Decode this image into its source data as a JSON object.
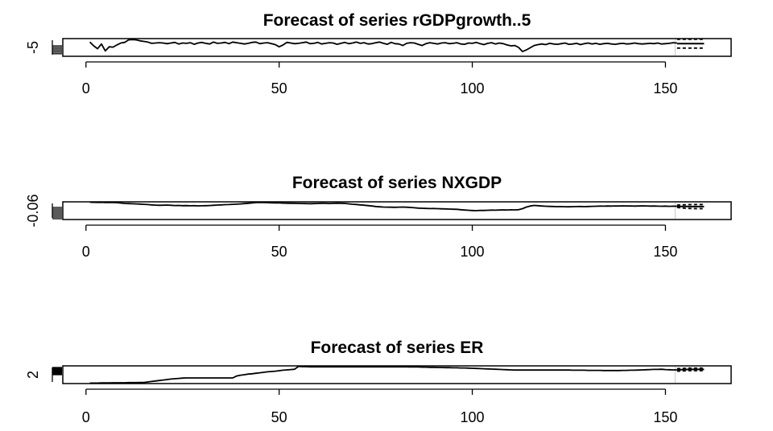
{
  "chart_data": [
    {
      "type": "line",
      "title": "Forecast of series rGDPgrowth..5",
      "xlim": [
        -6,
        167
      ],
      "xticks": [
        0,
        50,
        100,
        150
      ],
      "ylim": [
        -6.8,
        -1.2
      ],
      "yticks": [
        -6,
        -5.5,
        -5,
        -4.5,
        -4,
        -3.5
      ],
      "ytick_labels": [
        "-5"
      ],
      "series": [
        {
          "values": [
            -2.3,
            -3.5,
            -4.4,
            -2.9,
            -5.1,
            -3.8,
            -3.9,
            -3.2,
            -2.6,
            -2.4,
            -1.6,
            -1.5,
            -1.6,
            -1.9,
            -2.1,
            -2.3,
            -2.7,
            -2.6,
            -2.5,
            -2.6,
            -2.8,
            -2.6,
            -2.4,
            -2.9,
            -2.6,
            -2.7,
            -2.5,
            -3.0,
            -2.6,
            -2.4,
            -2.7,
            -2.9,
            -2.3,
            -2.7,
            -2.6,
            -2.4,
            -2.8,
            -2.3,
            -2.5,
            -2.7,
            -2.9,
            -2.7,
            -2.4,
            -2.3,
            -2.8,
            -2.6,
            -2.5,
            -2.8,
            -3.1,
            -3.8,
            -3.2,
            -2.4,
            -2.6,
            -2.8,
            -2.7,
            -2.5,
            -2.3,
            -2.8,
            -2.7,
            -2.4,
            -2.9,
            -2.7,
            -2.5,
            -2.6,
            -3.0,
            -2.7,
            -2.4,
            -2.8,
            -2.6,
            -2.3,
            -2.7,
            -2.5,
            -2.9,
            -2.8,
            -2.5,
            -2.3,
            -2.7,
            -3.0,
            -2.4,
            -2.8,
            -2.9,
            -3.4,
            -2.7,
            -2.5,
            -2.6,
            -3.0,
            -3.4,
            -2.8,
            -2.5,
            -2.7,
            -2.9,
            -2.6,
            -2.5,
            -2.8,
            -2.7,
            -2.5,
            -2.9,
            -3.0,
            -2.6,
            -2.7,
            -2.4,
            -2.8,
            -3.1,
            -2.7,
            -2.5,
            -2.9,
            -2.6,
            -2.8,
            -3.2,
            -3.5,
            -3.4,
            -4.0,
            -5.3,
            -4.8,
            -4.1,
            -3.4,
            -3.1,
            -2.9,
            -3.1,
            -2.7,
            -2.9,
            -3.0,
            -2.8,
            -2.6,
            -3.0,
            -2.9,
            -2.7,
            -3.1,
            -2.8,
            -2.6,
            -2.9,
            -2.7,
            -3.0,
            -2.8,
            -2.7,
            -2.9,
            -3.0,
            -2.8,
            -2.7,
            -2.9,
            -2.8,
            -2.6,
            -2.8,
            -2.9,
            -2.8,
            -2.7,
            -2.8,
            -2.6,
            -2.9,
            -2.8,
            -2.7,
            -2.5,
            -2.6
          ]
        },
        {
          "name": "forecast",
          "x": [
            153,
            154,
            155,
            156,
            157,
            158,
            159,
            160
          ],
          "values": [
            -2.8,
            -2.8,
            -2.8,
            -2.8,
            -2.8,
            -2.8,
            -2.8,
            -2.8
          ]
        },
        {
          "name": "lower",
          "x": [
            153,
            154,
            155,
            156,
            157,
            158,
            159,
            160
          ],
          "values": [
            -4.2,
            -4.2,
            -4.2,
            -4.2,
            -4.2,
            -4.2,
            -4.2,
            -4.2
          ]
        },
        {
          "name": "upper",
          "x": [
            153,
            154,
            155,
            156,
            157,
            158,
            159,
            160
          ],
          "values": [
            -1.4,
            -1.4,
            -1.4,
            -1.4,
            -1.4,
            -1.4,
            -1.4,
            -1.4
          ]
        }
      ],
      "colors": {
        "history": "#000000",
        "forecast": "#3355ee",
        "interval": "#ee3344"
      },
      "xlabel": "",
      "ylabel": "",
      "grid": false,
      "legend": "none"
    },
    {
      "type": "line",
      "title": "Forecast of series NXGDP",
      "xlim": [
        -6,
        167
      ],
      "xticks": [
        0,
        50,
        100,
        150
      ],
      "ylim": [
        -0.071,
        -0.049
      ],
      "yticks": [
        -0.07,
        -0.068,
        -0.066,
        -0.064,
        -0.062,
        -0.06,
        -0.058,
        -0.056
      ],
      "ytick_labels": [
        "-0.06"
      ],
      "series": [
        {
          "values": [
            -0.0495,
            -0.0496,
            -0.0497,
            -0.0496,
            -0.0498,
            -0.0497,
            -0.0499,
            -0.05,
            -0.0505,
            -0.051,
            -0.0512,
            -0.0514,
            -0.0516,
            -0.0518,
            -0.0521,
            -0.0524,
            -0.0528,
            -0.0531,
            -0.0533,
            -0.0532,
            -0.053,
            -0.0533,
            -0.0536,
            -0.0535,
            -0.0538,
            -0.0537,
            -0.0539,
            -0.0538,
            -0.054,
            -0.0539,
            -0.0538,
            -0.0536,
            -0.0533,
            -0.053,
            -0.0528,
            -0.0525,
            -0.0524,
            -0.0521,
            -0.0519,
            -0.0516,
            -0.0512,
            -0.0508,
            -0.0503,
            -0.0499,
            -0.0497,
            -0.0498,
            -0.05,
            -0.0502,
            -0.0503,
            -0.0504,
            -0.0506,
            -0.0507,
            -0.0508,
            -0.0509,
            -0.051,
            -0.0511,
            -0.0512,
            -0.0513,
            -0.0512,
            -0.051,
            -0.0508,
            -0.0509,
            -0.0511,
            -0.0509,
            -0.0507,
            -0.0508,
            -0.051,
            -0.0515,
            -0.052,
            -0.0523,
            -0.0528,
            -0.0532,
            -0.0537,
            -0.0542,
            -0.0548,
            -0.0552,
            -0.0555,
            -0.0556,
            -0.0557,
            -0.0558,
            -0.0556,
            -0.0555,
            -0.0557,
            -0.056,
            -0.0564,
            -0.0568,
            -0.057,
            -0.0572,
            -0.0574,
            -0.0573,
            -0.0575,
            -0.0577,
            -0.0578,
            -0.058,
            -0.0582,
            -0.0583,
            -0.0588,
            -0.0592,
            -0.0595,
            -0.0598,
            -0.06,
            -0.0596,
            -0.0597,
            -0.0595,
            -0.0593,
            -0.0594,
            -0.0592,
            -0.059,
            -0.0591,
            -0.0589,
            -0.059,
            -0.0588,
            -0.0575,
            -0.0555,
            -0.0542,
            -0.0535,
            -0.0538,
            -0.0542,
            -0.0545,
            -0.0547,
            -0.0548,
            -0.055,
            -0.0549,
            -0.0551,
            -0.0552,
            -0.055,
            -0.0549,
            -0.0548,
            -0.055,
            -0.0548,
            -0.0546,
            -0.0545,
            -0.0543,
            -0.0544,
            -0.0542,
            -0.0543,
            -0.0541,
            -0.0542,
            -0.054,
            -0.0542,
            -0.0541,
            -0.0543,
            -0.0542,
            -0.054,
            -0.0541,
            -0.0543,
            -0.0542,
            -0.0544,
            -0.0545,
            -0.0543,
            -0.0546,
            -0.0544,
            -0.0545
          ]
        },
        {
          "name": "forecast",
          "x": [
            153,
            154,
            155,
            156,
            157,
            158,
            159,
            160
          ],
          "values": [
            -0.0545,
            -0.0547,
            -0.0548,
            -0.0548,
            -0.0549,
            -0.0549,
            -0.0549,
            -0.0549
          ]
        },
        {
          "name": "lower",
          "x": [
            153,
            154,
            155,
            156,
            157,
            158,
            159,
            160
          ],
          "values": [
            -0.056,
            -0.0566,
            -0.057,
            -0.0572,
            -0.0574,
            -0.0575,
            -0.0575,
            -0.0575
          ]
        },
        {
          "name": "upper",
          "x": [
            153,
            154,
            155,
            156,
            157,
            158,
            159,
            160
          ],
          "values": [
            -0.053,
            -0.0528,
            -0.0526,
            -0.0524,
            -0.0524,
            -0.0523,
            -0.0523,
            -0.0523
          ]
        }
      ],
      "colors": {
        "history": "#000000",
        "forecast": "#3355ee",
        "interval": "#ee3344"
      },
      "xlabel": "",
      "ylabel": "",
      "grid": false,
      "legend": "none"
    },
    {
      "type": "line",
      "title": "Forecast of series ER",
      "xlim": [
        -6,
        167
      ],
      "xticks": [
        0,
        50,
        100,
        150
      ],
      "ylim": [
        1.45,
        2.55
      ],
      "yticks": [
        2,
        2.05,
        2.1,
        2.15,
        2.2,
        2.25,
        2.3,
        2.35,
        2.4,
        2.45
      ],
      "ytick_labels": [
        "2"
      ],
      "series": [
        {
          "values": [
            1.48,
            1.48,
            1.48,
            1.49,
            1.49,
            1.49,
            1.5,
            1.5,
            1.5,
            1.5,
            1.51,
            1.51,
            1.51,
            1.52,
            1.52,
            1.55,
            1.58,
            1.61,
            1.64,
            1.67,
            1.7,
            1.73,
            1.75,
            1.77,
            1.79,
            1.8,
            1.8,
            1.8,
            1.8,
            1.8,
            1.8,
            1.8,
            1.8,
            1.8,
            1.8,
            1.8,
            1.8,
            1.8,
            1.92,
            1.97,
            2.0,
            2.04,
            2.06,
            2.09,
            2.12,
            2.15,
            2.18,
            2.2,
            2.22,
            2.25,
            2.28,
            2.3,
            2.32,
            2.34,
            2.52,
            2.5,
            2.5,
            2.49,
            2.49,
            2.49,
            2.49,
            2.49,
            2.49,
            2.49,
            2.49,
            2.49,
            2.49,
            2.49,
            2.49,
            2.49,
            2.49,
            2.49,
            2.49,
            2.49,
            2.49,
            2.49,
            2.49,
            2.49,
            2.49,
            2.49,
            2.49,
            2.49,
            2.49,
            2.48,
            2.48,
            2.48,
            2.47,
            2.47,
            2.46,
            2.46,
            2.45,
            2.45,
            2.44,
            2.44,
            2.43,
            2.43,
            2.42,
            2.42,
            2.41,
            2.4,
            2.39,
            2.38,
            2.37,
            2.36,
            2.35,
            2.34,
            2.33,
            2.32,
            2.31,
            2.3,
            2.29,
            2.29,
            2.29,
            2.29,
            2.29,
            2.29,
            2.29,
            2.29,
            2.29,
            2.29,
            2.29,
            2.29,
            2.29,
            2.29,
            2.29,
            2.28,
            2.28,
            2.28,
            2.28,
            2.27,
            2.27,
            2.27,
            2.27,
            2.26,
            2.26,
            2.26,
            2.26,
            2.26,
            2.27,
            2.27,
            2.28,
            2.28,
            2.29,
            2.3,
            2.31,
            2.32,
            2.33,
            2.33,
            2.34,
            2.32,
            2.31,
            2.3,
            2.3
          ]
        },
        {
          "name": "forecast",
          "x": [
            153,
            154,
            155,
            156,
            157,
            158,
            159,
            160
          ],
          "values": [
            2.3,
            2.31,
            2.32,
            2.33,
            2.33,
            2.33,
            2.33,
            2.33
          ]
        },
        {
          "name": "lower",
          "x": [
            153,
            154,
            155,
            156,
            157,
            158,
            159,
            160
          ],
          "values": [
            2.22,
            2.23,
            2.24,
            2.25,
            2.25,
            2.25,
            2.25,
            2.25
          ]
        },
        {
          "name": "upper",
          "x": [
            153,
            154,
            155,
            156,
            157,
            158,
            159,
            160
          ],
          "values": [
            2.38,
            2.39,
            2.4,
            2.41,
            2.41,
            2.41,
            2.41,
            2.41
          ]
        }
      ],
      "colors": {
        "history": "#000000",
        "forecast": "#3355ee",
        "interval": "#ee3344"
      },
      "xlabel": "",
      "ylabel": "",
      "grid": false,
      "legend": "none"
    }
  ]
}
